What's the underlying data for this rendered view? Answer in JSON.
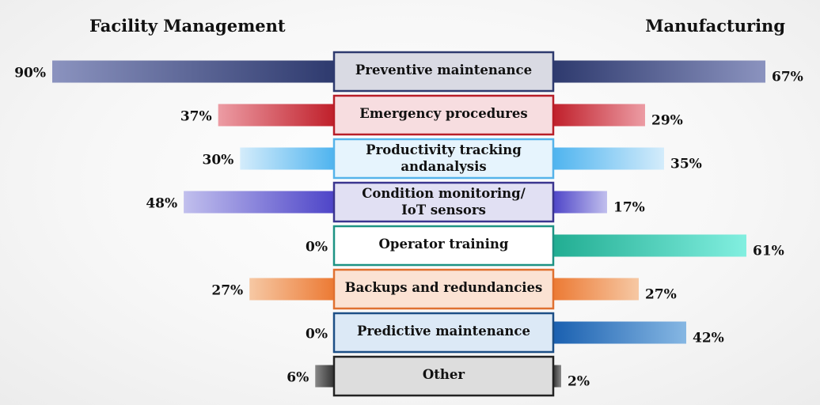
{
  "chart_data": {
    "type": "bar",
    "left_series_name": "Facility Management",
    "right_series_name": "Manufacturing",
    "value_suffix": "%",
    "xlim": [
      0,
      100
    ],
    "categories": [
      "Preventive maintenance",
      "Emergency procedures",
      "Productivity tracking andanalysis",
      "Condition monitoring/ IoT sensors",
      "Operator training",
      "Backups and redundancies",
      "Predictive maintenance",
      "Other"
    ],
    "category_lines": [
      [
        "Preventive maintenance"
      ],
      [
        "Emergency procedures"
      ],
      [
        "Productivity tracking",
        "andanalysis"
      ],
      [
        "Condition monitoring/",
        "IoT sensors"
      ],
      [
        "Operator training"
      ],
      [
        "Backups and redundancies"
      ],
      [
        "Predictive maintenance"
      ],
      [
        "Other"
      ]
    ],
    "series": [
      {
        "name": "Facility Management",
        "values": [
          90,
          37,
          30,
          48,
          0,
          27,
          0,
          6
        ]
      },
      {
        "name": "Manufacturing",
        "values": [
          67,
          29,
          35,
          17,
          61,
          27,
          42,
          2
        ]
      }
    ],
    "colors": [
      {
        "dark": "#2e3a6e",
        "light": "#8b93bf",
        "box": "#d9dae3",
        "border": "#2e3a6e"
      },
      {
        "dark": "#c0202b",
        "light": "#ec9ca4",
        "box": "#f7dde0",
        "border": "#b81e28"
      },
      {
        "dark": "#4fb4ef",
        "light": "#d4ecfb",
        "box": "#e6f4fd",
        "border": "#55b3ea"
      },
      {
        "dark": "#4e45c8",
        "light": "#c1bfed",
        "box": "#e1e0f3",
        "border": "#3a358f"
      },
      {
        "dark": "#21ad92",
        "light": "#82efe0",
        "box": "#ffffff",
        "border": "#1e9384"
      },
      {
        "dark": "#ec7a34",
        "light": "#f6c8a4",
        "box": "#fbe2d3",
        "border": "#e07030"
      },
      {
        "dark": "#1a60b0",
        "light": "#86b7e3",
        "box": "#dce9f6",
        "border": "#1d4f86"
      },
      {
        "dark": "#333333",
        "light": "#888888",
        "box": "#dddddd",
        "border": "#222222"
      }
    ]
  }
}
